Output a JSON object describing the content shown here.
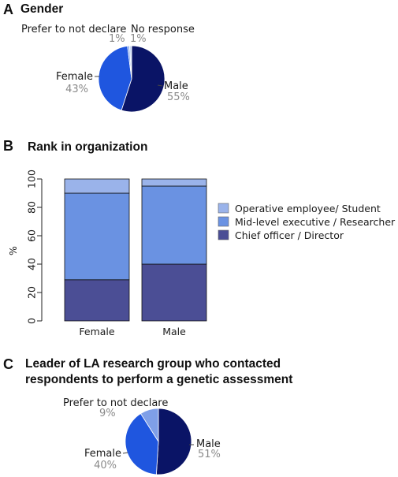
{
  "panels": {
    "a": {
      "letter": "A",
      "title": "Gender"
    },
    "b": {
      "letter": "B",
      "title": "Rank in organization"
    },
    "c": {
      "letter": "C",
      "title_line1": "Leader of LA research group who contacted",
      "title_line2": "respondents to perform a genetic assessment"
    }
  },
  "chart_data": [
    {
      "type": "pie",
      "title": "Gender",
      "labels": [
        "Male",
        "Female",
        "Prefer to not declare",
        "No response"
      ],
      "values": [
        55,
        43,
        1,
        1
      ],
      "value_labels": [
        "55%",
        "43%",
        "1%",
        "1%"
      ],
      "colors": [
        "#0a1466",
        "#1f56df",
        "#89abee",
        "#c8d8f6"
      ]
    },
    {
      "type": "bar",
      "stacked": true,
      "title": "Rank in organization",
      "categories": [
        "Female",
        "Male"
      ],
      "ylabel": "%",
      "ylim": [
        0,
        100
      ],
      "yticks": [
        "0",
        "20",
        "40",
        "60",
        "80",
        "100"
      ],
      "series": [
        {
          "name": "Chief officer / Director",
          "values": [
            29,
            40
          ],
          "color": "#4b4e95"
        },
        {
          "name": "Mid-level executive / Researcher",
          "values": [
            61,
            55
          ],
          "color": "#6a92e2"
        },
        {
          "name": "Operative employee/ Student",
          "values": [
            10,
            5
          ],
          "color": "#9ab3ea"
        }
      ],
      "legend_order": [
        "Operative employee/ Student",
        "Mid-level executive / Researcher",
        "Chief officer / Director"
      ],
      "legend_position": "right"
    },
    {
      "type": "pie",
      "title": "Leader of LA research group who contacted respondents to perform a genetic assessment",
      "labels": [
        "Male",
        "Female",
        "Prefer to not declare"
      ],
      "values": [
        51,
        40,
        9
      ],
      "value_labels": [
        "51%",
        "40%",
        "9%"
      ],
      "colors": [
        "#0a1466",
        "#1f56df",
        "#7f9fe8"
      ]
    }
  ]
}
